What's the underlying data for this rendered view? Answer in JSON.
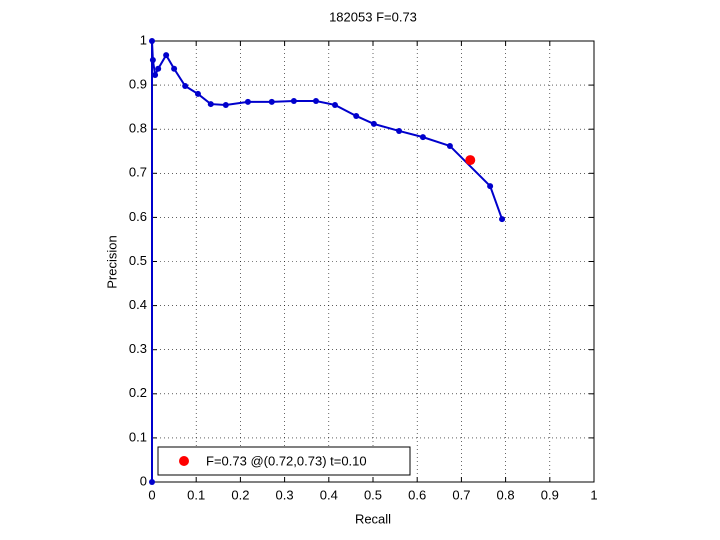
{
  "chart_data": {
    "type": "line",
    "title": "182053 F=0.73",
    "xlabel": "Recall",
    "ylabel": "Precision",
    "x": [
      0,
      0,
      0.002,
      0.007,
      0.014,
      0.032,
      0.05,
      0.075,
      0.104,
      0.133,
      0.167,
      0.217,
      0.271,
      0.321,
      0.371,
      0.414,
      0.462,
      0.502,
      0.559,
      0.613,
      0.674,
      0.765,
      0.792
    ],
    "values": [
      0,
      1,
      0.957,
      0.923,
      0.937,
      0.968,
      0.937,
      0.898,
      0.88,
      0.857,
      0.855,
      0.862,
      0.862,
      0.864,
      0.864,
      0.855,
      0.83,
      0.812,
      0.796,
      0.782,
      0.762,
      0.671,
      0.596
    ],
    "color": "#0000cc",
    "best_point": {
      "x": 0.72,
      "y": 0.73,
      "color": "#ff0000",
      "label": "F=0.73 @(0.72,0.73) t=0.10"
    },
    "legend": "lower left",
    "xlim": [
      0,
      1
    ],
    "ylim": [
      0,
      1
    ],
    "xticks": [
      0,
      0.1,
      0.2,
      0.3,
      0.4,
      0.5,
      0.6,
      0.7,
      0.8,
      0.9,
      1
    ],
    "yticks": [
      0,
      0.1,
      0.2,
      0.3,
      0.4,
      0.5,
      0.6,
      0.7,
      0.8,
      0.9,
      1
    ],
    "grid": true
  }
}
